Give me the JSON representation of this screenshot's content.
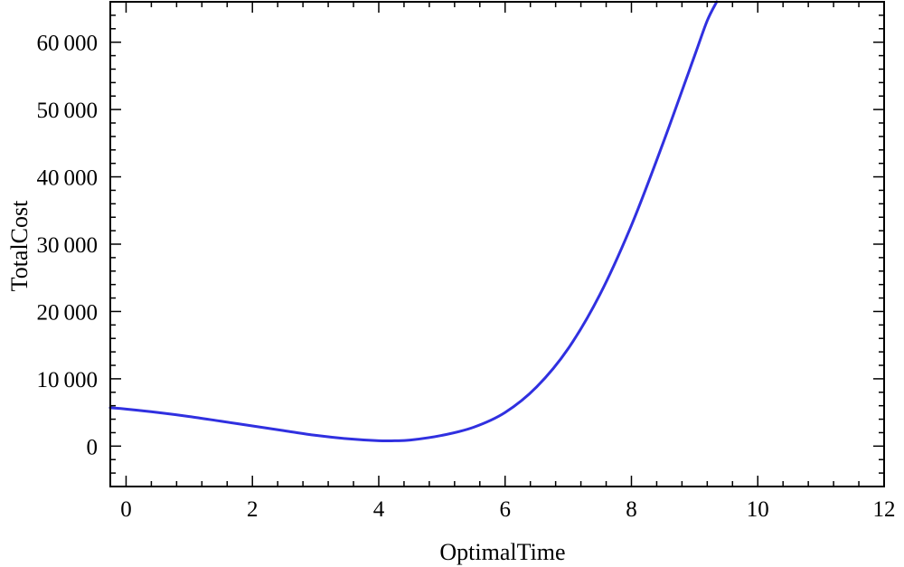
{
  "chart_data": {
    "type": "line",
    "title": "",
    "xlabel": "OptimalTime",
    "ylabel": "TotalCost",
    "xlim": [
      -0.25,
      12
    ],
    "ylim": [
      -6000,
      66000
    ],
    "xticks": [
      0,
      2,
      4,
      6,
      8,
      10,
      12
    ],
    "xtick_labels": [
      "0",
      "2",
      "4",
      "6",
      "8",
      "10",
      "12"
    ],
    "yticks": [
      0,
      10000,
      20000,
      30000,
      40000,
      50000,
      60000
    ],
    "ytick_labels": [
      "0",
      "10 000",
      "20 000",
      "30 000",
      "40 000",
      "50 000",
      "60 000"
    ],
    "grid": false,
    "legend": "none",
    "colors": {
      "line": "#3030e0",
      "frame": "#000000"
    },
    "series": [
      {
        "color": "#3030e0",
        "x": [
          -0.25,
          0,
          0.5,
          1,
          1.5,
          2,
          2.5,
          3,
          3.5,
          4,
          4.25,
          4.5,
          5,
          5.5,
          6,
          6.5,
          7,
          7.5,
          8,
          8.5,
          9,
          9.2,
          9.35
        ],
        "y": [
          5700,
          5500,
          5000,
          4400,
          3700,
          3000,
          2300,
          1600,
          1100,
          800,
          800,
          900,
          1600,
          2800,
          5000,
          8800,
          14500,
          22500,
          32800,
          45000,
          58000,
          63200,
          66000
        ]
      }
    ]
  }
}
